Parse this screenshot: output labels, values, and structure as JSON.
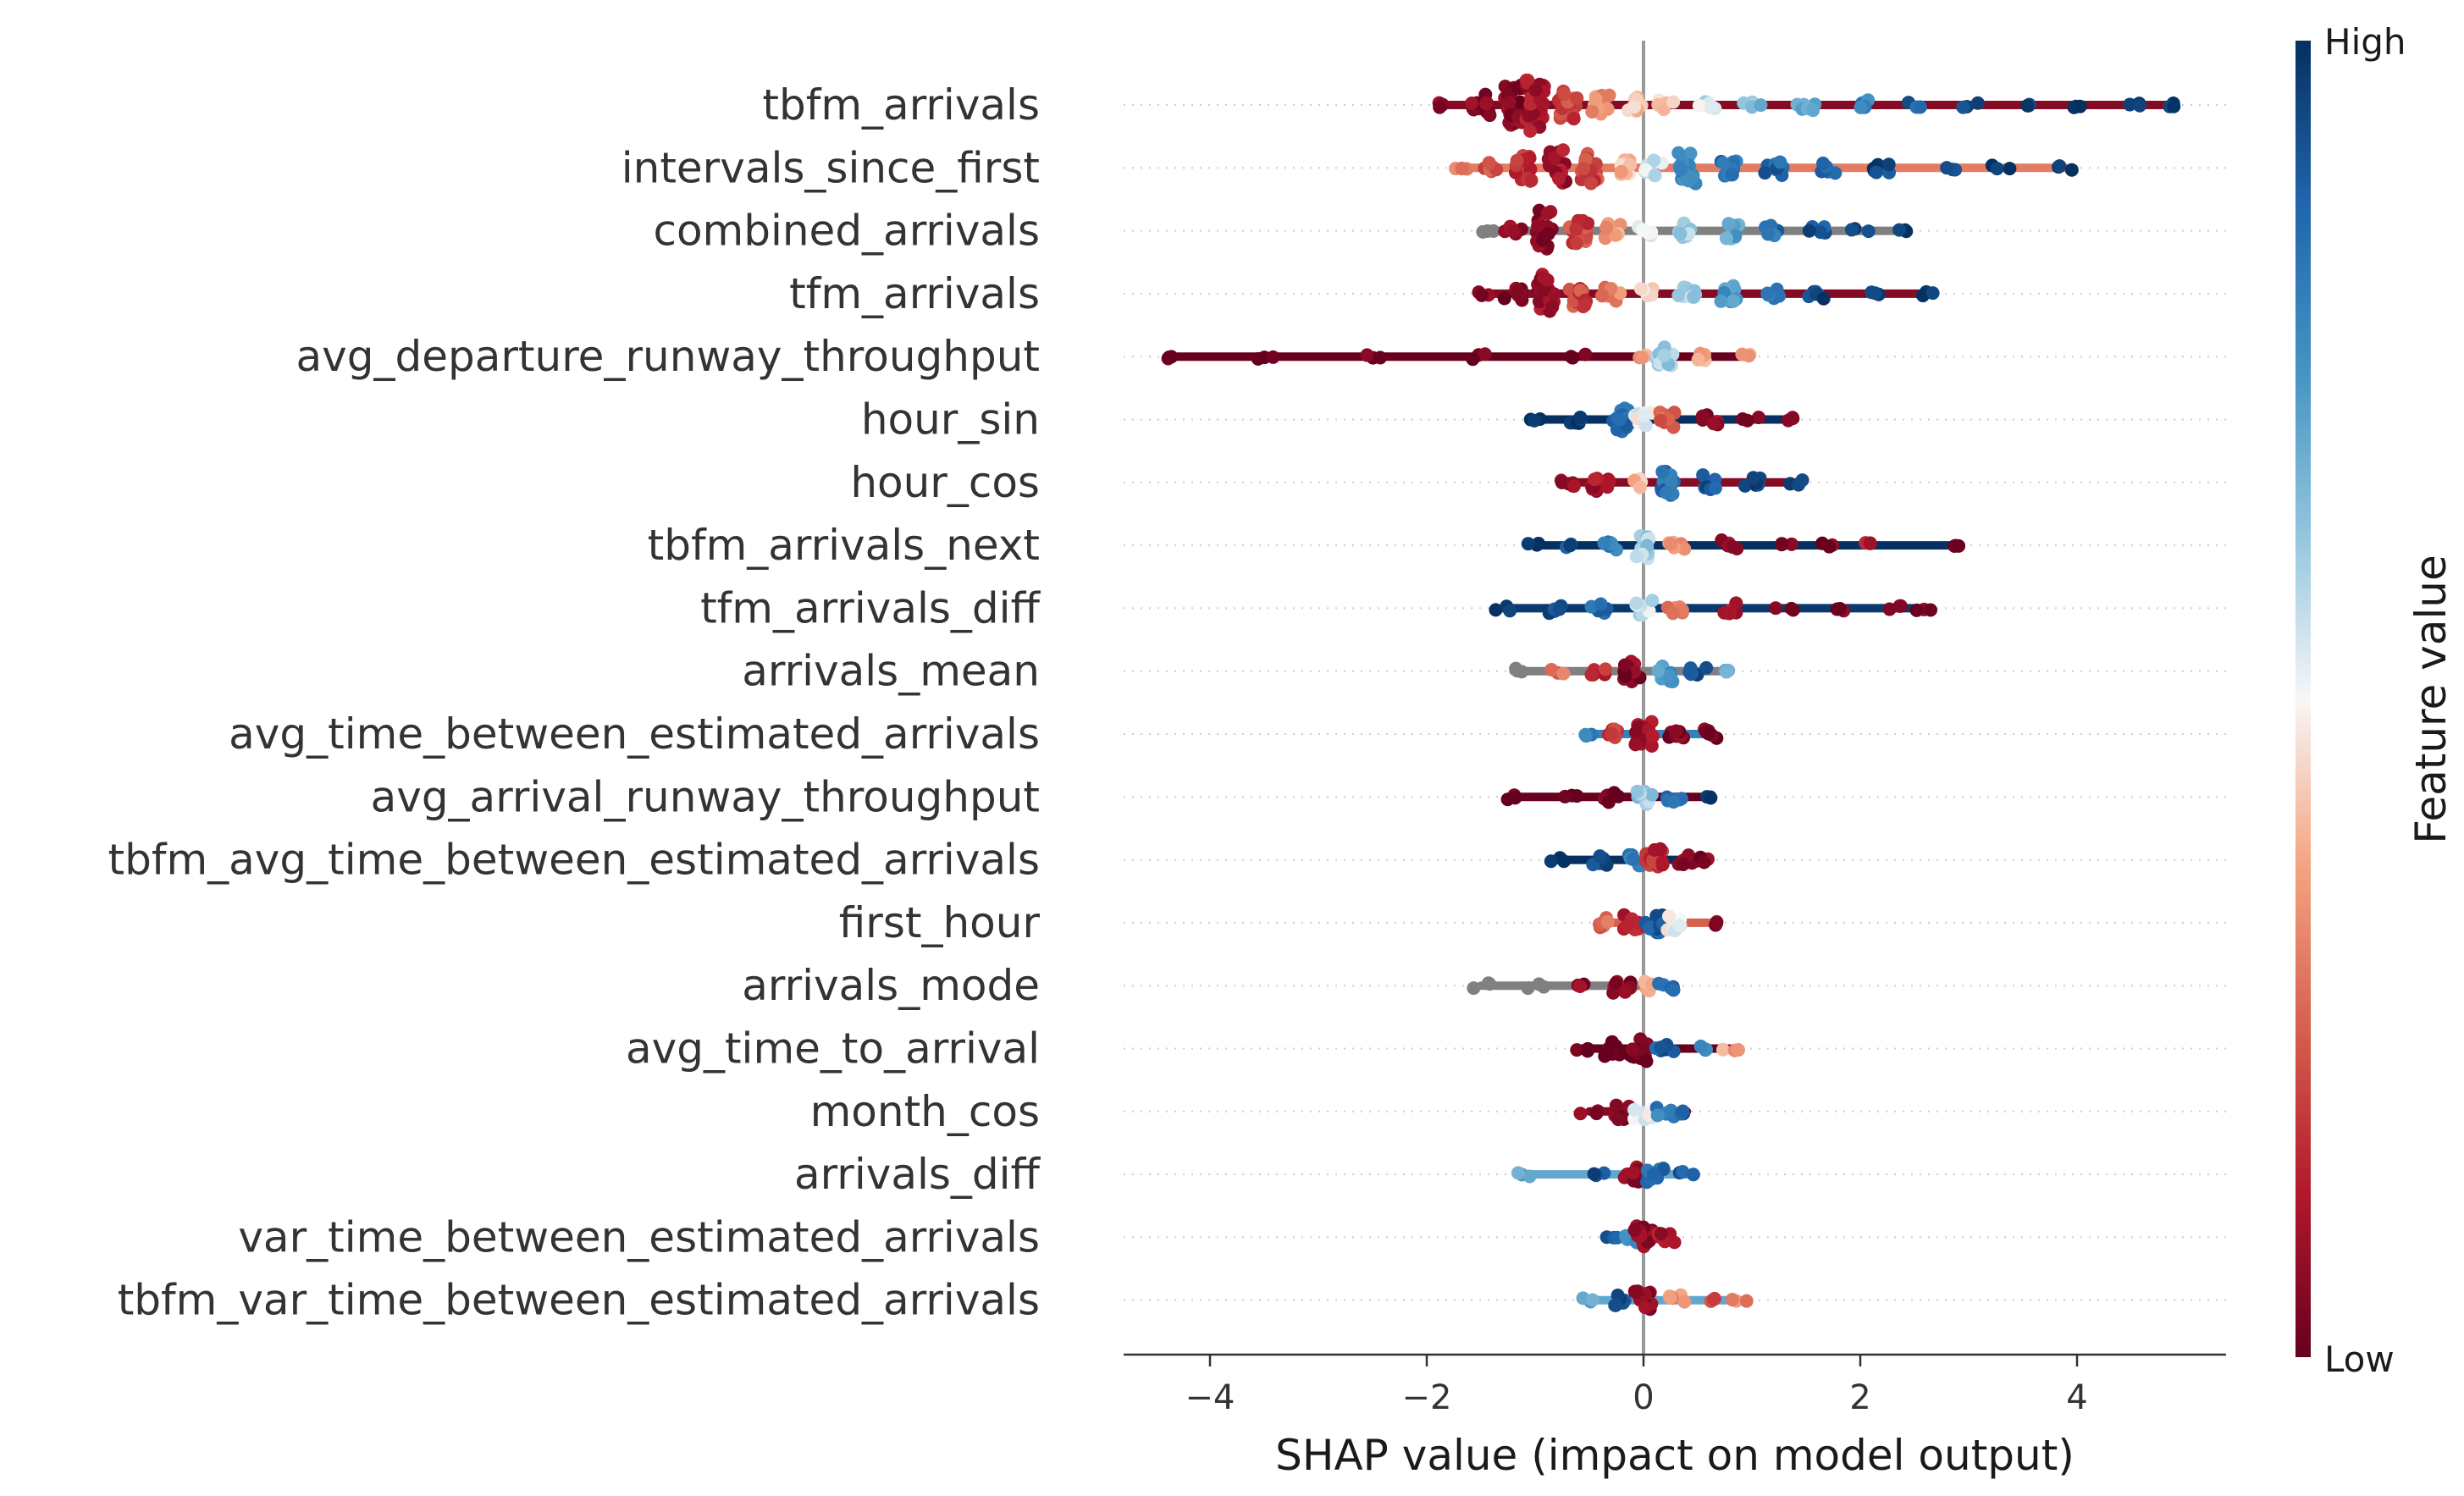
{
  "chart_data": {
    "type": "scatter",
    "subtype": "shap-beeswarm",
    "title": "",
    "xlabel": "SHAP value (impact on model output)",
    "ylabel": "",
    "xlim": [
      -4.8,
      5.4
    ],
    "xticks": [
      -4,
      -2,
      0,
      2,
      4
    ],
    "xtick_labels": [
      "−4",
      "−2",
      "0",
      "2",
      "4"
    ],
    "colorbar": {
      "label": "Feature value",
      "high_label": "High",
      "low_label": "Low",
      "colormap": "RdBu (red = low, blue = high)"
    },
    "missing_color": "#808080",
    "features": [
      {
        "name": "tbfm_arrivals",
        "bins": [
          {
            "x": -1.8,
            "n": 1,
            "c": 0.05
          },
          {
            "x": -1.5,
            "n": 4,
            "c": 0.05
          },
          {
            "x": -1.2,
            "n": 8,
            "c": 0.05
          },
          {
            "x": -1.0,
            "n": 10,
            "c": 0.1
          },
          {
            "x": -0.7,
            "n": 6,
            "c": 0.2
          },
          {
            "x": -0.4,
            "n": 4,
            "c": 0.35
          },
          {
            "x": -0.1,
            "n": 3,
            "c": 0.42
          },
          {
            "x": 0.2,
            "n": 2,
            "c": 0.45
          },
          {
            "x": 0.6,
            "n": 2,
            "c": 0.55
          },
          {
            "x": 1.0,
            "n": 2,
            "c": 0.65
          },
          {
            "x": 1.5,
            "n": 2,
            "c": 0.72
          },
          {
            "x": 2.0,
            "n": 2,
            "c": 0.8
          },
          {
            "x": 2.5,
            "n": 1,
            "c": 0.9
          },
          {
            "x": 3.0,
            "n": 1,
            "c": 0.95
          },
          {
            "x": 3.5,
            "n": 1,
            "c": 0.97
          },
          {
            "x": 4.0,
            "n": 1,
            "c": 0.98
          },
          {
            "x": 4.5,
            "n": 1,
            "c": 0.99
          },
          {
            "x": 4.9,
            "n": 1,
            "c": 1.0
          }
        ]
      },
      {
        "name": "intervals_since_first",
        "bins": [
          {
            "x": -1.7,
            "n": 1,
            "c": 0.3
          },
          {
            "x": -1.4,
            "n": 2,
            "c": 0.25
          },
          {
            "x": -1.1,
            "n": 5,
            "c": 0.15
          },
          {
            "x": -0.8,
            "n": 7,
            "c": 0.1
          },
          {
            "x": -0.5,
            "n": 6,
            "c": 0.2
          },
          {
            "x": -0.2,
            "n": 3,
            "c": 0.4
          },
          {
            "x": 0.1,
            "n": 3,
            "c": 0.55
          },
          {
            "x": 0.4,
            "n": 6,
            "c": 0.8
          },
          {
            "x": 0.8,
            "n": 4,
            "c": 0.85
          },
          {
            "x": 1.2,
            "n": 3,
            "c": 0.88
          },
          {
            "x": 1.7,
            "n": 2,
            "c": 0.9
          },
          {
            "x": 2.2,
            "n": 2,
            "c": 0.95
          },
          {
            "x": 2.8,
            "n": 1,
            "c": 0.97
          },
          {
            "x": 3.3,
            "n": 1,
            "c": 0.99
          },
          {
            "x": 3.9,
            "n": 1,
            "c": 1.0
          }
        ]
      },
      {
        "name": "combined_arrivals",
        "bins": [
          {
            "x": -1.4,
            "n": 1,
            "c": -1
          },
          {
            "x": -1.2,
            "n": 2,
            "c": 0.1
          },
          {
            "x": -0.9,
            "n": 8,
            "c": 0.05
          },
          {
            "x": -0.6,
            "n": 5,
            "c": 0.2
          },
          {
            "x": -0.3,
            "n": 3,
            "c": 0.35
          },
          {
            "x": 0.0,
            "n": 2,
            "c": 0.5
          },
          {
            "x": 0.4,
            "n": 3,
            "c": 0.6
          },
          {
            "x": 0.8,
            "n": 3,
            "c": 0.72
          },
          {
            "x": 1.2,
            "n": 2,
            "c": 0.85
          },
          {
            "x": 1.6,
            "n": 2,
            "c": 0.92
          },
          {
            "x": 2.0,
            "n": 1,
            "c": 0.97
          },
          {
            "x": 2.4,
            "n": 1,
            "c": 1.0
          }
        ]
      },
      {
        "name": "tfm_arrivals",
        "bins": [
          {
            "x": -1.5,
            "n": 1,
            "c": 0.05
          },
          {
            "x": -1.2,
            "n": 3,
            "c": 0.05
          },
          {
            "x": -0.9,
            "n": 8,
            "c": 0.08
          },
          {
            "x": -0.6,
            "n": 5,
            "c": 0.2
          },
          {
            "x": -0.3,
            "n": 3,
            "c": 0.3
          },
          {
            "x": 0.0,
            "n": 2,
            "c": 0.45
          },
          {
            "x": 0.4,
            "n": 3,
            "c": 0.6
          },
          {
            "x": 0.8,
            "n": 3,
            "c": 0.75
          },
          {
            "x": 1.2,
            "n": 2,
            "c": 0.85
          },
          {
            "x": 1.6,
            "n": 2,
            "c": 0.95
          },
          {
            "x": 2.1,
            "n": 1,
            "c": 0.98
          },
          {
            "x": 2.6,
            "n": 1,
            "c": 1.0
          }
        ]
      },
      {
        "name": "avg_departure_runway_throughput",
        "bins": [
          {
            "x": -4.4,
            "n": 1,
            "c": 0.0
          },
          {
            "x": -3.5,
            "n": 1,
            "c": 0.0
          },
          {
            "x": -2.5,
            "n": 1,
            "c": 0.0
          },
          {
            "x": -1.5,
            "n": 1,
            "c": 0.0
          },
          {
            "x": -0.6,
            "n": 1,
            "c": 0.0
          },
          {
            "x": 0.0,
            "n": 1,
            "c": 0.35
          },
          {
            "x": 0.2,
            "n": 4,
            "c": 0.6
          },
          {
            "x": 0.5,
            "n": 2,
            "c": 0.4
          },
          {
            "x": 0.9,
            "n": 1,
            "c": 0.35
          }
        ]
      },
      {
        "name": "hour_sin",
        "bins": [
          {
            "x": -1.0,
            "n": 1,
            "c": 1.0
          },
          {
            "x": -0.6,
            "n": 2,
            "c": 1.0
          },
          {
            "x": -0.2,
            "n": 5,
            "c": 0.85
          },
          {
            "x": 0.0,
            "n": 3,
            "c": 0.5
          },
          {
            "x": 0.2,
            "n": 3,
            "c": 0.25
          },
          {
            "x": 0.6,
            "n": 2,
            "c": 0.05
          },
          {
            "x": 1.0,
            "n": 1,
            "c": 0.05
          },
          {
            "x": 1.4,
            "n": 1,
            "c": 0.1
          }
        ]
      },
      {
        "name": "hour_cos",
        "bins": [
          {
            "x": -0.7,
            "n": 2,
            "c": 0.05
          },
          {
            "x": -0.4,
            "n": 4,
            "c": 0.1
          },
          {
            "x": -0.1,
            "n": 2,
            "c": 0.4
          },
          {
            "x": 0.2,
            "n": 5,
            "c": 0.85
          },
          {
            "x": 0.6,
            "n": 3,
            "c": 0.9
          },
          {
            "x": 1.0,
            "n": 2,
            "c": 0.95
          },
          {
            "x": 1.4,
            "n": 1,
            "c": 0.97
          }
        ]
      },
      {
        "name": "tbfm_arrivals_next",
        "bins": [
          {
            "x": -1.0,
            "n": 1,
            "c": 1.0
          },
          {
            "x": -0.7,
            "n": 1,
            "c": 0.95
          },
          {
            "x": -0.3,
            "n": 2,
            "c": 0.8
          },
          {
            "x": 0.0,
            "n": 5,
            "c": 0.6
          },
          {
            "x": 0.3,
            "n": 2,
            "c": 0.35
          },
          {
            "x": 0.8,
            "n": 2,
            "c": 0.05
          },
          {
            "x": 1.3,
            "n": 1,
            "c": 0.05
          },
          {
            "x": 1.7,
            "n": 1,
            "c": 0.05
          },
          {
            "x": 2.1,
            "n": 1,
            "c": 0.1
          },
          {
            "x": 2.9,
            "n": 1,
            "c": 0.05
          }
        ]
      },
      {
        "name": "tfm_arrivals_diff",
        "bins": [
          {
            "x": -1.3,
            "n": 1,
            "c": 0.98
          },
          {
            "x": -0.8,
            "n": 2,
            "c": 0.95
          },
          {
            "x": -0.4,
            "n": 2,
            "c": 0.85
          },
          {
            "x": 0.0,
            "n": 3,
            "c": 0.55
          },
          {
            "x": 0.3,
            "n": 2,
            "c": 0.3
          },
          {
            "x": 0.8,
            "n": 2,
            "c": 0.1
          },
          {
            "x": 1.3,
            "n": 1,
            "c": 0.05
          },
          {
            "x": 1.8,
            "n": 1,
            "c": 0.05
          },
          {
            "x": 2.3,
            "n": 1,
            "c": 0.05
          },
          {
            "x": 2.6,
            "n": 1,
            "c": 0.05
          }
        ]
      },
      {
        "name": "arrivals_mean",
        "bins": [
          {
            "x": -1.2,
            "n": 1,
            "c": -1
          },
          {
            "x": -0.8,
            "n": 1,
            "c": 0.3
          },
          {
            "x": -0.4,
            "n": 2,
            "c": 0.15
          },
          {
            "x": -0.1,
            "n": 4,
            "c": 0.05
          },
          {
            "x": 0.2,
            "n": 4,
            "c": 0.75
          },
          {
            "x": 0.5,
            "n": 2,
            "c": 0.9
          },
          {
            "x": 0.8,
            "n": 1,
            "c": 0.7
          }
        ]
      },
      {
        "name": "avg_time_between_estimated_arrivals",
        "bins": [
          {
            "x": -0.5,
            "n": 1,
            "c": 0.8
          },
          {
            "x": -0.3,
            "n": 2,
            "c": 0.2
          },
          {
            "x": 0.0,
            "n": 5,
            "c": 0.08
          },
          {
            "x": 0.3,
            "n": 3,
            "c": 0.03
          },
          {
            "x": 0.6,
            "n": 2,
            "c": 0.03
          }
        ]
      },
      {
        "name": "avg_arrival_runway_throughput",
        "bins": [
          {
            "x": -1.2,
            "n": 1,
            "c": 0.0
          },
          {
            "x": -0.7,
            "n": 1,
            "c": 0.0
          },
          {
            "x": -0.3,
            "n": 2,
            "c": 0.0
          },
          {
            "x": 0.0,
            "n": 3,
            "c": 0.6
          },
          {
            "x": 0.3,
            "n": 2,
            "c": 0.85
          },
          {
            "x": 0.6,
            "n": 1,
            "c": 1.0
          }
        ]
      },
      {
        "name": "tbfm_avg_time_between_estimated_arrivals",
        "bins": [
          {
            "x": -0.8,
            "n": 1,
            "c": 1.0
          },
          {
            "x": -0.4,
            "n": 2,
            "c": 0.95
          },
          {
            "x": -0.1,
            "n": 3,
            "c": 0.8
          },
          {
            "x": 0.1,
            "n": 5,
            "c": 0.15
          },
          {
            "x": 0.4,
            "n": 2,
            "c": 0.05
          },
          {
            "x": 0.6,
            "n": 1,
            "c": 0.03
          }
        ]
      },
      {
        "name": "first_hour",
        "bins": [
          {
            "x": -0.4,
            "n": 2,
            "c": 0.25
          },
          {
            "x": -0.1,
            "n": 3,
            "c": 0.15
          },
          {
            "x": 0.1,
            "n": 4,
            "c": 0.9
          },
          {
            "x": 0.3,
            "n": 3,
            "c": 0.5
          },
          {
            "x": 0.6,
            "n": 1,
            "c": 0.05
          }
        ]
      },
      {
        "name": "arrivals_mode",
        "bins": [
          {
            "x": -1.5,
            "n": 1,
            "c": -1
          },
          {
            "x": -1.0,
            "n": 1,
            "c": -1
          },
          {
            "x": -0.6,
            "n": 1,
            "c": 0.05
          },
          {
            "x": -0.2,
            "n": 3,
            "c": 0.05
          },
          {
            "x": 0.0,
            "n": 2,
            "c": 0.4
          },
          {
            "x": 0.2,
            "n": 2,
            "c": 0.85
          }
        ]
      },
      {
        "name": "avg_time_to_arrival",
        "bins": [
          {
            "x": -0.6,
            "n": 1,
            "c": 0.0
          },
          {
            "x": -0.3,
            "n": 3,
            "c": 0.0
          },
          {
            "x": -0.05,
            "n": 5,
            "c": 0.0
          },
          {
            "x": 0.2,
            "n": 2,
            "c": 0.9
          },
          {
            "x": 0.5,
            "n": 1,
            "c": 0.8
          },
          {
            "x": 0.8,
            "n": 1,
            "c": 0.35
          }
        ]
      },
      {
        "name": "month_cos",
        "bins": [
          {
            "x": -0.5,
            "n": 1,
            "c": 0.05
          },
          {
            "x": -0.2,
            "n": 3,
            "c": 0.05
          },
          {
            "x": 0.0,
            "n": 3,
            "c": 0.5
          },
          {
            "x": 0.2,
            "n": 2,
            "c": 0.8
          },
          {
            "x": 0.4,
            "n": 1,
            "c": 0.9
          }
        ]
      },
      {
        "name": "arrivals_diff",
        "bins": [
          {
            "x": -1.1,
            "n": 1,
            "c": 0.7
          },
          {
            "x": -0.4,
            "n": 1,
            "c": 0.95
          },
          {
            "x": -0.1,
            "n": 3,
            "c": 0.05
          },
          {
            "x": 0.1,
            "n": 3,
            "c": 0.85
          },
          {
            "x": 0.4,
            "n": 1,
            "c": 0.9
          }
        ]
      },
      {
        "name": "var_time_between_estimated_arrivals",
        "bins": [
          {
            "x": -0.3,
            "n": 1,
            "c": 0.9
          },
          {
            "x": -0.1,
            "n": 2,
            "c": 0.8
          },
          {
            "x": 0.0,
            "n": 5,
            "c": 0.05
          },
          {
            "x": 0.2,
            "n": 2,
            "c": 0.1
          }
        ]
      },
      {
        "name": "tbfm_var_time_between_estimated_arrivals",
        "bins": [
          {
            "x": -0.5,
            "n": 1,
            "c": 0.7
          },
          {
            "x": -0.2,
            "n": 2,
            "c": 0.95
          },
          {
            "x": 0.0,
            "n": 5,
            "c": 0.05
          },
          {
            "x": 0.3,
            "n": 2,
            "c": 0.35
          },
          {
            "x": 0.6,
            "n": 1,
            "c": 0.2
          },
          {
            "x": 0.9,
            "n": 1,
            "c": 0.3
          }
        ]
      }
    ]
  }
}
